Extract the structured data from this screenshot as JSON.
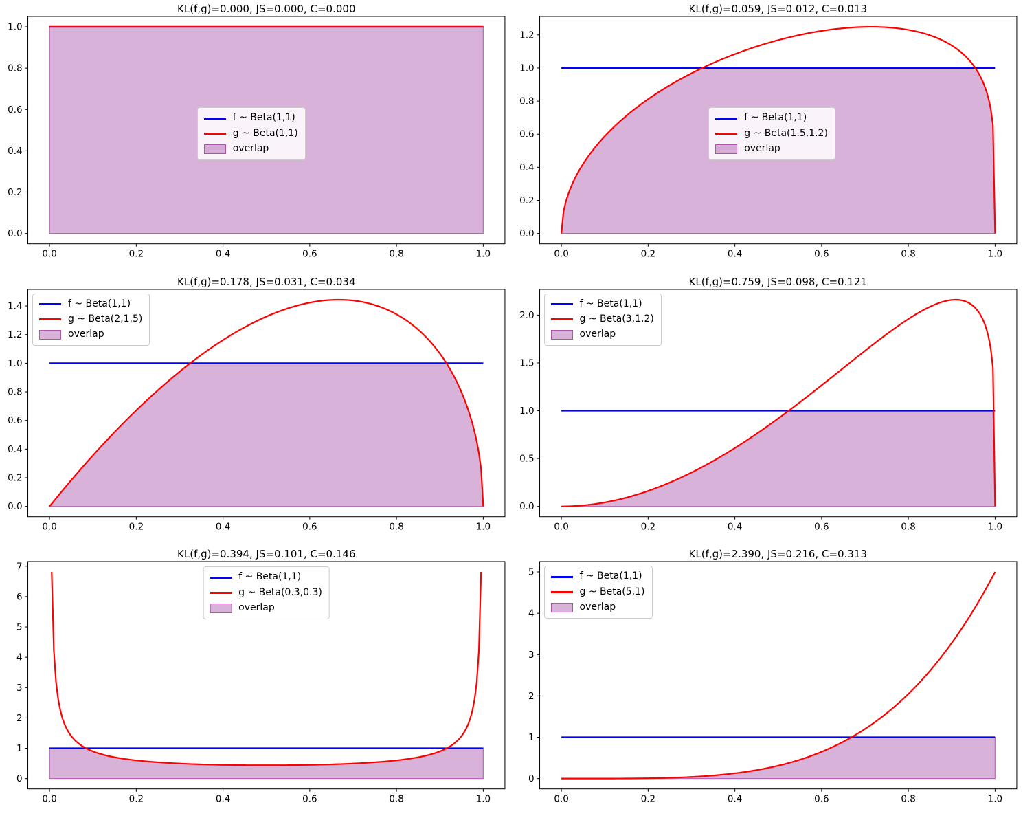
{
  "figure": {
    "background": "#ffffff",
    "rows": 3,
    "cols": 2
  },
  "chart_data": [
    {
      "type": "line",
      "title": "KL(f,g)=0.000, JS=0.000, C=0.000",
      "metrics": {
        "KL": "0.000",
        "JS": "0.000",
        "C": "0.000"
      },
      "f": {
        "label": "f ~ Beta(1,1)",
        "params": [
          1,
          1
        ],
        "color": "#0000ff"
      },
      "g": {
        "label": "g ~ Beta(1,1)",
        "params": [
          1,
          1
        ],
        "color": "#ff0000"
      },
      "overlap": {
        "label": "overlap",
        "color": "#800080",
        "alpha": 0.3
      },
      "xlim": [
        -0.05,
        1.05
      ],
      "ylim": [
        -0.05,
        1.05
      ],
      "xticks": {
        "values": [
          0,
          0.2,
          0.4,
          0.6,
          0.8,
          1.0
        ],
        "labels": [
          "0.0",
          "0.2",
          "0.4",
          "0.6",
          "0.8",
          "1.0"
        ]
      },
      "yticks": {
        "values": [
          0,
          0.2,
          0.4,
          0.6,
          0.8,
          1.0
        ],
        "labels": [
          "0.0",
          "0.2",
          "0.4",
          "0.6",
          "0.8",
          "1.0"
        ]
      },
      "legend_loc": "center",
      "grid": false,
      "sample_points": 201,
      "x_range": [
        0,
        1
      ]
    },
    {
      "type": "line",
      "title": "KL(f,g)=0.059, JS=0.012, C=0.013",
      "metrics": {
        "KL": "0.059",
        "JS": "0.012",
        "C": "0.013"
      },
      "f": {
        "label": "f ~ Beta(1,1)",
        "params": [
          1,
          1
        ],
        "color": "#0000ff"
      },
      "g": {
        "label": "g ~ Beta(1.5,1.2)",
        "params": [
          1.5,
          1.2
        ],
        "color": "#ff0000"
      },
      "overlap": {
        "label": "overlap",
        "color": "#800080",
        "alpha": 0.3
      },
      "xlim": [
        -0.05,
        1.05
      ],
      "ylim": [
        -0.0625,
        1.3115
      ],
      "xticks": {
        "values": [
          0,
          0.2,
          0.4,
          0.6,
          0.8,
          1.0
        ],
        "labels": [
          "0.0",
          "0.2",
          "0.4",
          "0.6",
          "0.8",
          "1.0"
        ]
      },
      "yticks": {
        "values": [
          0,
          0.2,
          0.4,
          0.6,
          0.8,
          1.0,
          1.2
        ],
        "labels": [
          "0.0",
          "0.2",
          "0.4",
          "0.6",
          "0.8",
          "1.0",
          "1.2"
        ]
      },
      "legend_loc": "center",
      "grid": false,
      "sample_points": 201,
      "x_range": [
        0,
        1
      ]
    },
    {
      "type": "line",
      "title": "KL(f,g)=0.178, JS=0.031, C=0.034",
      "metrics": {
        "KL": "0.178",
        "JS": "0.031",
        "C": "0.034"
      },
      "f": {
        "label": "f ~ Beta(1,1)",
        "params": [
          1,
          1
        ],
        "color": "#0000ff"
      },
      "g": {
        "label": "g ~ Beta(2,1.5)",
        "params": [
          2,
          1.5
        ],
        "color": "#ff0000"
      },
      "overlap": {
        "label": "overlap",
        "color": "#800080",
        "alpha": 0.3
      },
      "xlim": [
        -0.05,
        1.05
      ],
      "ylim": [
        -0.0722,
        1.5156
      ],
      "xticks": {
        "values": [
          0,
          0.2,
          0.4,
          0.6,
          0.8,
          1.0
        ],
        "labels": [
          "0.0",
          "0.2",
          "0.4",
          "0.6",
          "0.8",
          "1.0"
        ]
      },
      "yticks": {
        "values": [
          0,
          0.2,
          0.4,
          0.6,
          0.8,
          1.0,
          1.2,
          1.4
        ],
        "labels": [
          "0.0",
          "0.2",
          "0.4",
          "0.6",
          "0.8",
          "1.0",
          "1.2",
          "1.4"
        ]
      },
      "legend_loc": "upper left",
      "grid": false,
      "sample_points": 201,
      "x_range": [
        0,
        1
      ]
    },
    {
      "type": "line",
      "title": "KL(f,g)=0.759, JS=0.098, C=0.121",
      "metrics": {
        "KL": "0.759",
        "JS": "0.098",
        "C": "0.121"
      },
      "f": {
        "label": "f ~ Beta(1,1)",
        "params": [
          1,
          1
        ],
        "color": "#0000ff"
      },
      "g": {
        "label": "g ~ Beta(3,1.2)",
        "params": [
          3,
          1.2
        ],
        "color": "#ff0000"
      },
      "overlap": {
        "label": "overlap",
        "color": "#800080",
        "alpha": 0.3
      },
      "xlim": [
        -0.05,
        1.05
      ],
      "ylim": [
        -0.108,
        2.269
      ],
      "xticks": {
        "values": [
          0,
          0.2,
          0.4,
          0.6,
          0.8,
          1.0
        ],
        "labels": [
          "0.0",
          "0.2",
          "0.4",
          "0.6",
          "0.8",
          "1.0"
        ]
      },
      "yticks": {
        "values": [
          0,
          0.5,
          1.0,
          1.5,
          2.0
        ],
        "labels": [
          "0.0",
          "0.5",
          "1.0",
          "1.5",
          "2.0"
        ]
      },
      "legend_loc": "upper left",
      "grid": false,
      "sample_points": 201,
      "x_range": [
        0,
        1
      ]
    },
    {
      "type": "line",
      "title": "KL(f,g)=0.394, JS=0.101, C=0.146",
      "metrics": {
        "KL": "0.394",
        "JS": "0.101",
        "C": "0.146"
      },
      "f": {
        "label": "f ~ Beta(1,1)",
        "params": [
          1,
          1
        ],
        "color": "#0000ff"
      },
      "g": {
        "label": "g ~ Beta(0.3,0.3)",
        "params": [
          0.3,
          0.3
        ],
        "color": "#ff0000"
      },
      "overlap": {
        "label": "overlap",
        "color": "#800080",
        "alpha": 0.3
      },
      "xlim": [
        -0.05,
        1.05
      ],
      "ylim": [
        -0.3407,
        7.1544
      ],
      "xticks": {
        "values": [
          0,
          0.2,
          0.4,
          0.6,
          0.8,
          1.0
        ],
        "labels": [
          "0.0",
          "0.2",
          "0.4",
          "0.6",
          "0.8",
          "1.0"
        ]
      },
      "yticks": {
        "values": [
          0,
          1,
          2,
          3,
          4,
          5,
          6,
          7
        ],
        "labels": [
          "0",
          "1",
          "2",
          "3",
          "4",
          "5",
          "6",
          "7"
        ]
      },
      "legend_loc": "upper center",
      "grid": false,
      "sample_points": 201,
      "x_range": [
        0,
        1
      ]
    },
    {
      "type": "line",
      "title": "KL(f,g)=2.390, JS=0.216, C=0.313",
      "metrics": {
        "KL": "2.390",
        "JS": "0.216",
        "C": "0.313"
      },
      "f": {
        "label": "f ~ Beta(1,1)",
        "params": [
          1,
          1
        ],
        "color": "#0000ff"
      },
      "g": {
        "label": "g ~ Beta(5,1)",
        "params": [
          5,
          1
        ],
        "color": "#ff0000"
      },
      "overlap": {
        "label": "overlap",
        "color": "#800080",
        "alpha": 0.3
      },
      "xlim": [
        -0.05,
        1.05
      ],
      "ylim": [
        -0.25,
        5.25
      ],
      "xticks": {
        "values": [
          0,
          0.2,
          0.4,
          0.6,
          0.8,
          1.0
        ],
        "labels": [
          "0.0",
          "0.2",
          "0.4",
          "0.6",
          "0.8",
          "1.0"
        ]
      },
      "yticks": {
        "values": [
          0,
          1,
          2,
          3,
          4,
          5
        ],
        "labels": [
          "0",
          "1",
          "2",
          "3",
          "4",
          "5"
        ]
      },
      "legend_loc": "upper left",
      "grid": false,
      "sample_points": 201,
      "x_range": [
        0,
        1
      ]
    }
  ]
}
